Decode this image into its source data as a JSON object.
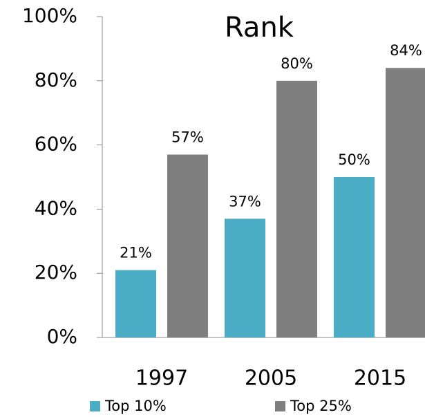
{
  "chart_data": {
    "type": "bar",
    "title": "Rank",
    "categories": [
      "1997",
      "2005",
      "2015"
    ],
    "series": [
      {
        "name": "Top 10%",
        "color": "#4bacc6",
        "values": [
          21,
          37,
          50
        ],
        "value_labels": [
          "21%",
          "37%",
          "50%"
        ]
      },
      {
        "name": "Top 25%",
        "color": "#7f7f7f",
        "values": [
          57,
          80,
          84
        ],
        "value_labels": [
          "57%",
          "80%",
          "84%"
        ]
      }
    ],
    "ylim": [
      0,
      100
    ],
    "yticks": [
      {
        "value": 0,
        "label": "0%"
      },
      {
        "value": 20,
        "label": "20%"
      },
      {
        "value": 40,
        "label": "40%"
      },
      {
        "value": 60,
        "label": "60%"
      },
      {
        "value": 80,
        "label": "80%"
      },
      {
        "value": 100,
        "label": "100%"
      }
    ]
  }
}
